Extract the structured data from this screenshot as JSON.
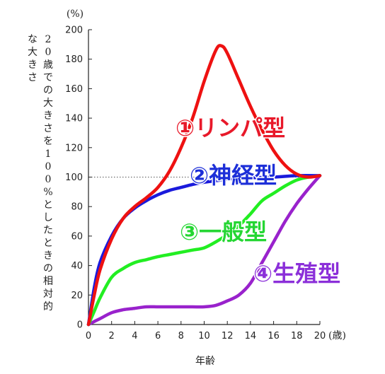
{
  "chart_data": {
    "type": "line",
    "unit_label": "(%)",
    "ylabel": "20歳での大きさを100%としたときの相対的な大きさ",
    "xlabel": "年齢",
    "x_unit": "(歳)",
    "xlim": [
      0,
      20
    ],
    "ylim": [
      0,
      200
    ],
    "x_ticks": [
      "0",
      "2",
      "4",
      "6",
      "8",
      "10",
      "12",
      "14",
      "16",
      "18",
      "20"
    ],
    "y_ticks": [
      "0",
      "20",
      "40",
      "60",
      "80",
      "100",
      "120",
      "140",
      "160",
      "180",
      "200"
    ],
    "reference_line_y": 100,
    "series": [
      {
        "name": "①リンパ型",
        "color": "#ee1111",
        "label_color": "#e8192a",
        "x": [
          0,
          0.5,
          1,
          2,
          3,
          4,
          5,
          6,
          7,
          8,
          9,
          10,
          11,
          11.5,
          12,
          13,
          14,
          15,
          16,
          17,
          18,
          19,
          20
        ],
        "y": [
          0,
          20,
          37,
          58,
          72,
          80,
          86,
          93,
          104,
          120,
          140,
          165,
          186,
          189,
          184,
          166,
          148,
          132,
          118,
          108,
          102,
          100,
          101
        ]
      },
      {
        "name": "②神経型",
        "color": "#1a1adc",
        "label_color": "#1d2fd8",
        "x": [
          0,
          0.5,
          1,
          2,
          3,
          4,
          5,
          6,
          7,
          8,
          9,
          10,
          12,
          14,
          16,
          18,
          20
        ],
        "y": [
          0,
          25,
          42,
          60,
          72,
          79,
          84,
          88,
          91,
          93,
          95,
          96.5,
          98.5,
          99.5,
          100,
          101,
          101
        ]
      },
      {
        "name": "③一般型",
        "color": "#22ee22",
        "label_color": "#25d633",
        "x": [
          0,
          0.5,
          1,
          2,
          3,
          4,
          5,
          6,
          7,
          8,
          9,
          10,
          11,
          12,
          13,
          14,
          15,
          16,
          17,
          18,
          19,
          20
        ],
        "y": [
          0,
          9,
          18,
          32,
          38,
          42,
          44,
          46,
          47.5,
          49,
          50.5,
          52,
          56,
          61,
          67,
          75,
          84,
          89,
          94,
          98,
          100,
          101
        ]
      },
      {
        "name": "④生殖型",
        "color": "#9922cc",
        "label_color": "#8b2fd9",
        "x": [
          0,
          1,
          2,
          3,
          4,
          5,
          6,
          7,
          8,
          9,
          10,
          11,
          12,
          13,
          14,
          15,
          16,
          17,
          18,
          19,
          20
        ],
        "y": [
          0,
          4,
          8,
          10,
          11,
          12,
          12,
          12,
          12,
          12,
          12,
          13,
          16,
          20,
          28,
          42,
          56,
          70,
          82,
          92,
          101
        ]
      }
    ]
  }
}
